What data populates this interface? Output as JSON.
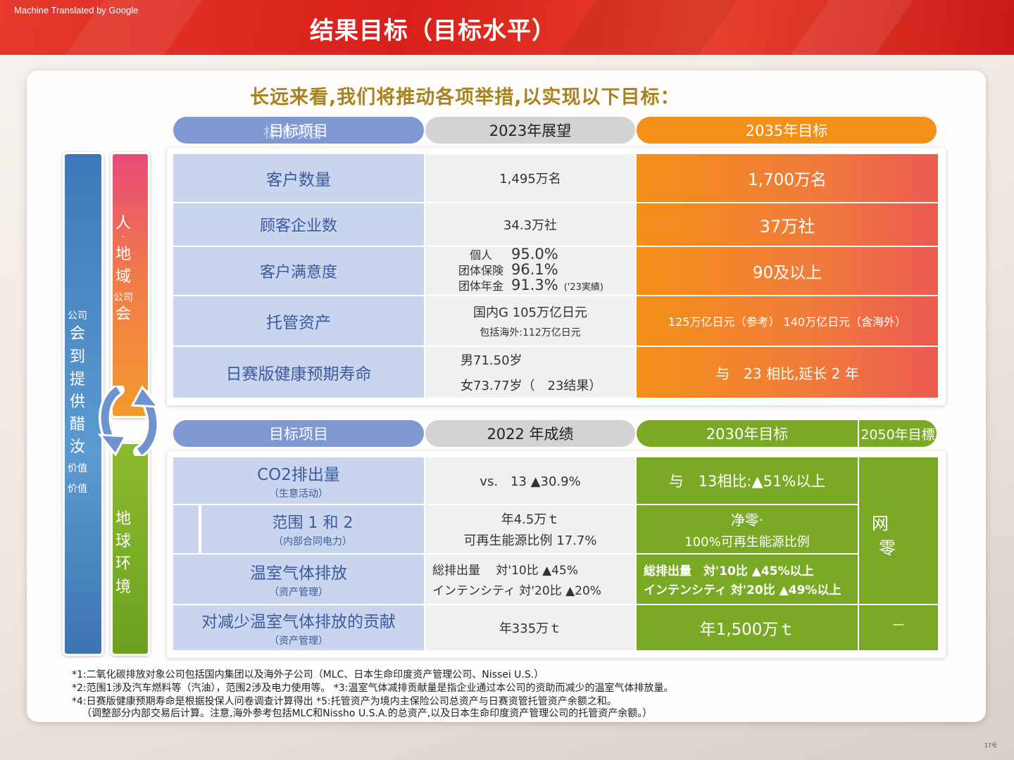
{
  "header": {
    "machine_note": "Machine Translated by Google",
    "title": "结果目标（目标水平）"
  },
  "subtitle": "长远来看,我们将推动各项举措,以实现以下目标：",
  "side": {
    "blue_bar": [
      "公司",
      "会",
      "到",
      "提",
      "供",
      "醋",
      "汝",
      "价值",
      "价值"
    ],
    "people_bar": [
      "人",
      "·",
      "地",
      "域",
      "公司",
      "会"
    ],
    "earth_bar": [
      "地",
      "球",
      "环",
      "境"
    ]
  },
  "top_table": {
    "headers": {
      "item": "目标项目",
      "item_overlay": "标准项目",
      "outlook": "2023年展望",
      "target": "2035年目标"
    },
    "rows": [
      {
        "label": "客户数量",
        "outlook": "1,495万名",
        "target": "1,700万名"
      },
      {
        "label": "顾客企业数",
        "outlook": "34.3万社",
        "target": "37万社"
      },
      {
        "label": "客户满意度",
        "outlook_lines": [
          {
            "name": "個人",
            "value": "95.0%"
          },
          {
            "name": "团体保険",
            "value": "96.1%"
          },
          {
            "name": "团体年金",
            "value": "91.3%"
          }
        ],
        "outlook_note": "('23実績)",
        "target": "90及以上"
      },
      {
        "label": "托管资产",
        "outlook": "国内G 105万亿日元",
        "outlook_sub": "包括海外:112万亿日元",
        "target": "125万亿日元（参考） 140万亿日元（含海外）"
      },
      {
        "label": "日赛版健康预期寿命",
        "outlook": "男71.50岁",
        "outlook_sub": "女73.77岁（　23结果）",
        "target": "与　23 相比,延长 2 年"
      }
    ]
  },
  "bottom_table": {
    "headers": {
      "item": "目标项目",
      "result": "2022 年成绩",
      "target2030": "2030年目标",
      "target2050": "2050年目標"
    },
    "rows": [
      {
        "label": "CO2排出量",
        "sub": "（生意活动）",
        "result": "vs.　13 ▲30.9%",
        "target": "与　13相比:▲51%以上"
      },
      {
        "label": "范围 1 和 2",
        "sub": "（内部合同电力）",
        "result": "年4.5万ｔ",
        "result_sub": "可再生能源比例 17.7%",
        "target": "净零·",
        "target_sub": "100%可再生能源比例"
      },
      {
        "label": "温室气体排放",
        "sub": "（资产管理）",
        "result_lines": [
          "総排出量　 対'10比 ▲45%",
          "インテンシティ 対'20比 ▲20%"
        ],
        "target_lines": [
          "総排出量　対'10比 ▲45%以上",
          "インテンシティ 対'20比 ▲49%以上"
        ]
      },
      {
        "label": "对减少温室气体排放的贡献",
        "sub": "（资产管理）",
        "result": "年335万ｔ",
        "target": "年1,500万ｔ"
      }
    ],
    "net_zero": [
      "网",
      "零"
    ],
    "dash": "－"
  },
  "footnotes": [
    "*1:二氧化碳排放对象公司包括国内集团以及海外子公司（MLC、日本生命印度资产管理公司、Nissei U.S.）",
    "*2:范围1涉及汽车燃料等（汽油），范围2涉及电力使用等。 *3:温室气体减排贡献量是指企业通过本公司的资助而减少的温室气体排放量。",
    "*4:日赛版健康预期寿命是根据投保人问卷调查计算得出 *5:托管资产为境内主保险公司总资产与日赛资管托管资产余额之和。",
    "（调整部分内部交易后计算。注意,海外参考包括MLC和Nissho U.S.A.的总资产,以及日本生命印度资产管理公司的托管资产余额。）"
  ],
  "page_number": "17号",
  "colors": {
    "header_red": "#d8201a",
    "subtitle_gold": "#a9821e",
    "label_blue": "#3c5a9c",
    "green": "#7aaa25",
    "orange": "#f18b1c"
  }
}
